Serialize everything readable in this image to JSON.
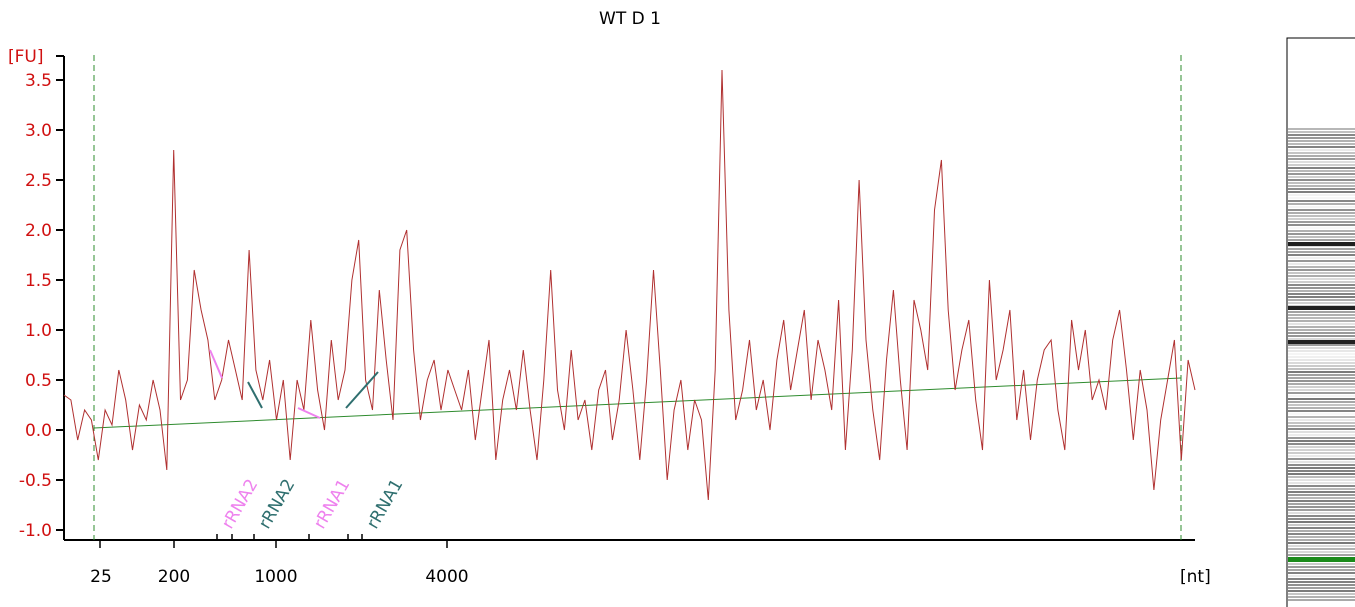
{
  "chart_data": {
    "type": "line",
    "title": "WT D 1",
    "ylabel": "[FU]",
    "xlabel": "[nt]",
    "ylim": [
      -1.1,
      3.8
    ],
    "y_ticks": [
      3.5,
      3.0,
      2.5,
      2.0,
      1.5,
      1.0,
      0.5,
      0.0,
      -0.5,
      -1.0
    ],
    "y_tick_labels": [
      "3.5",
      "3.0",
      "2.5",
      "2.0",
      "1.5",
      "1.0",
      "0.5",
      "0.0",
      "-0.5",
      "-1.0"
    ],
    "x_tick_labels": [
      "25",
      "200",
      "1000",
      "4000"
    ],
    "markers": [
      {
        "label": "rRNA2",
        "color": "#ee82ee"
      },
      {
        "label": "rRNA2",
        "color": "#2f6f6f"
      },
      {
        "label": "rRNA1",
        "color": "#ee82ee"
      },
      {
        "label": "rRNA1",
        "color": "#2f6f6f"
      }
    ],
    "baseline": {
      "start": 0.02,
      "end": 0.52,
      "color": "#2e8b2e"
    },
    "series": [
      {
        "color": "#b03030",
        "values": [
          0.35,
          0.3,
          -0.1,
          0.2,
          0.1,
          -0.3,
          0.2,
          0.05,
          0.6,
          0.3,
          -0.2,
          0.25,
          0.1,
          0.5,
          0.2,
          -0.4,
          2.8,
          0.3,
          0.5,
          1.6,
          1.2,
          0.9,
          0.3,
          0.5,
          0.9,
          0.6,
          0.3,
          1.8,
          0.6,
          0.3,
          0.7,
          0.1,
          0.5,
          -0.3,
          0.5,
          0.2,
          1.1,
          0.4,
          0.0,
          0.9,
          0.3,
          0.6,
          1.5,
          1.9,
          0.5,
          0.2,
          1.4,
          0.7,
          0.1,
          1.8,
          2.0,
          0.8,
          0.1,
          0.5,
          0.7,
          0.2,
          0.6,
          0.4,
          0.2,
          0.6,
          -0.1,
          0.4,
          0.9,
          -0.3,
          0.3,
          0.6,
          0.2,
          0.8,
          0.2,
          -0.3,
          0.5,
          1.6,
          0.4,
          0.0,
          0.8,
          0.1,
          0.3,
          -0.2,
          0.4,
          0.6,
          -0.1,
          0.3,
          1.0,
          0.4,
          -0.3,
          0.5,
          1.6,
          0.6,
          -0.5,
          0.2,
          0.5,
          -0.2,
          0.3,
          0.1,
          -0.7,
          0.6,
          3.6,
          1.2,
          0.1,
          0.4,
          0.9,
          0.2,
          0.5,
          0.0,
          0.7,
          1.1,
          0.4,
          0.8,
          1.2,
          0.3,
          0.9,
          0.6,
          0.2,
          1.3,
          -0.2,
          0.8,
          2.5,
          0.9,
          0.2,
          -0.3,
          0.7,
          1.4,
          0.5,
          -0.2,
          1.3,
          1.0,
          0.6,
          2.2,
          2.7,
          1.2,
          0.4,
          0.8,
          1.1,
          0.3,
          -0.2,
          1.5,
          0.5,
          0.8,
          1.2,
          0.1,
          0.6,
          -0.1,
          0.5,
          0.8,
          0.9,
          0.2,
          -0.2,
          1.1,
          0.6,
          1.0,
          0.3,
          0.5,
          0.2,
          0.9,
          1.2,
          0.6,
          -0.1,
          0.6,
          0.2,
          -0.6,
          0.1,
          0.5,
          0.9,
          -0.3,
          0.7,
          0.4
        ]
      }
    ]
  },
  "gel": {
    "band_color": "#1a8a1a"
  }
}
